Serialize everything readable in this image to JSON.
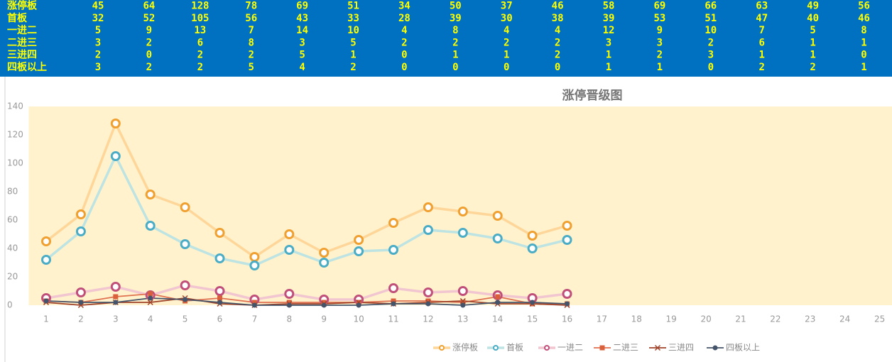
{
  "table": {
    "rows": [
      [
        "涨停板",
        45,
        64,
        128,
        78,
        69,
        51,
        34,
        50,
        37,
        46,
        58,
        69,
        66,
        63,
        49,
        56
      ],
      [
        "首板",
        32,
        52,
        105,
        56,
        43,
        33,
        28,
        39,
        30,
        38,
        39,
        53,
        51,
        47,
        40,
        46
      ],
      [
        "一进二",
        5,
        9,
        13,
        7,
        14,
        10,
        4,
        8,
        4,
        4,
        12,
        9,
        10,
        7,
        5,
        8
      ],
      [
        "二进三",
        3,
        2,
        6,
        8,
        3,
        5,
        2,
        2,
        2,
        2,
        3,
        3,
        2,
        6,
        1,
        1
      ],
      [
        "三进四",
        2,
        0,
        2,
        2,
        5,
        1,
        0,
        1,
        1,
        2,
        1,
        2,
        3,
        1,
        1,
        0
      ],
      [
        "四板以上",
        3,
        2,
        2,
        5,
        4,
        2,
        0,
        0,
        0,
        0,
        1,
        1,
        0,
        2,
        2,
        1
      ]
    ]
  },
  "chart_data": {
    "type": "line",
    "title": "涨停晋级图",
    "categories": [
      "1",
      "2",
      "3",
      "4",
      "5",
      "6",
      "7",
      "8",
      "9",
      "10",
      "11",
      "12",
      "13",
      "14",
      "15",
      "16",
      "17",
      "18",
      "19",
      "20",
      "21",
      "22",
      "23",
      "24",
      "25"
    ],
    "ylim": [
      0,
      140
    ],
    "yticks": [
      0,
      20,
      40,
      60,
      80,
      100,
      120,
      140
    ],
    "grid": false,
    "legend": "bottom",
    "series": [
      {
        "name": "涨停板",
        "color": "#ffd699",
        "marker_color": "#f0a030",
        "marker": "ring",
        "values": [
          45,
          64,
          128,
          78,
          69,
          51,
          34,
          50,
          37,
          46,
          58,
          69,
          66,
          63,
          49,
          56,
          null,
          null,
          null,
          null,
          null,
          null,
          null,
          null,
          null
        ]
      },
      {
        "name": "首板",
        "color": "#bde3e3",
        "marker_color": "#4bacc6",
        "marker": "ring",
        "values": [
          32,
          52,
          105,
          56,
          43,
          33,
          28,
          39,
          30,
          38,
          39,
          53,
          51,
          47,
          40,
          46,
          null,
          null,
          null,
          null,
          null,
          null,
          null,
          null,
          null
        ]
      },
      {
        "name": "一进二",
        "color": "#f2c6d0",
        "marker_color": "#c0507a",
        "marker": "ring",
        "values": [
          5,
          9,
          13,
          7,
          14,
          10,
          4,
          8,
          4,
          4,
          12,
          9,
          10,
          7,
          5,
          8,
          null,
          null,
          null,
          null,
          null,
          null,
          null,
          null,
          null
        ]
      },
      {
        "name": "二进三",
        "color": "#e07050",
        "marker_color": "#d9603a",
        "marker": "square",
        "values": [
          3,
          2,
          6,
          8,
          3,
          5,
          2,
          2,
          2,
          2,
          3,
          3,
          2,
          6,
          1,
          1,
          null,
          null,
          null,
          null,
          null,
          null,
          null,
          null,
          null
        ]
      },
      {
        "name": "三进四",
        "color": "#a0422a",
        "marker_color": "#a0422a",
        "marker": "x",
        "values": [
          2,
          0,
          2,
          2,
          5,
          1,
          0,
          1,
          1,
          2,
          1,
          2,
          3,
          1,
          1,
          0,
          null,
          null,
          null,
          null,
          null,
          null,
          null,
          null,
          null
        ]
      },
      {
        "name": "四板以上",
        "color": "#44546a",
        "marker_color": "#44546a",
        "marker": "dot",
        "values": [
          3,
          2,
          2,
          5,
          4,
          2,
          0,
          0,
          0,
          0,
          1,
          1,
          0,
          2,
          2,
          1,
          null,
          null,
          null,
          null,
          null,
          null,
          null,
          null,
          null
        ]
      }
    ]
  }
}
